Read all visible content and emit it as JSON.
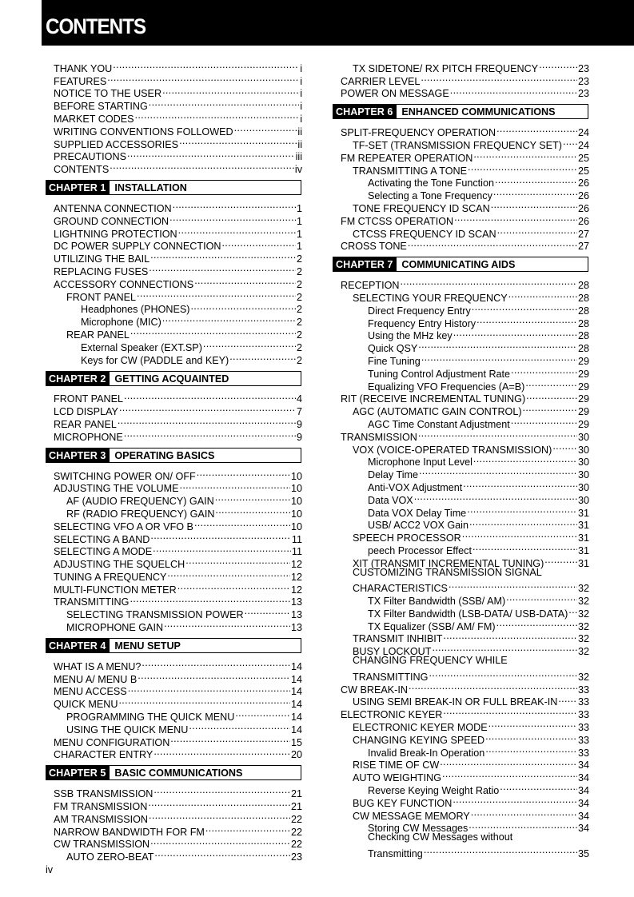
{
  "header": {
    "title": "CONTENTS"
  },
  "footer": {
    "page": "iv"
  },
  "columns": [
    [
      {
        "t": "THANK YOU",
        "p": "i",
        "l": 0
      },
      {
        "t": "FEATURES",
        "p": "i",
        "l": 0
      },
      {
        "t": "NOTICE TO THE USER",
        "p": "i",
        "l": 0
      },
      {
        "t": "BEFORE STARTING",
        "p": "i",
        "l": 0
      },
      {
        "t": "MARKET CODES",
        "p": "i",
        "l": 0
      },
      {
        "t": "WRITING CONVENTIONS FOLLOWED",
        "p": "ii",
        "l": 0
      },
      {
        "t": "SUPPLIED ACCESSORIES",
        "p": "ii",
        "l": 0
      },
      {
        "t": "PRECAUTIONS",
        "p": "iii",
        "l": 0
      },
      {
        "t": "CONTENTS",
        "p": "iv",
        "l": 0
      },
      {
        "chapter": "CHAPTER 1",
        "title": "INSTALLATION"
      },
      {
        "t": "ANTENNA CONNECTION",
        "p": "1",
        "l": 0
      },
      {
        "t": "GROUND CONNECTION",
        "p": "1",
        "l": 0
      },
      {
        "t": "LIGHTNING PROTECTION",
        "p": "1",
        "l": 0
      },
      {
        "t": "DC POWER SUPPLY CONNECTION",
        "p": "1",
        "l": 0
      },
      {
        "t": "UTILIZING THE BAIL",
        "p": "2",
        "l": 0
      },
      {
        "t": "REPLACING FUSES",
        "p": "2",
        "l": 0
      },
      {
        "t": "ACCESSORY CONNECTIONS",
        "p": "2",
        "l": 0
      },
      {
        "t": "FRONT PANEL",
        "p": "2",
        "l": 1
      },
      {
        "t": "Headphones (PHONES)",
        "p": "2",
        "l": 2
      },
      {
        "t": "Microphone (MIC)",
        "p": "2",
        "l": 2
      },
      {
        "t": "REAR PANEL",
        "p": "2",
        "l": 1
      },
      {
        "t": "External Speaker (EXT.SP)",
        "p": "2",
        "l": 2
      },
      {
        "t": "Keys for CW (PADDLE and KEY)",
        "p": "2",
        "l": 2
      },
      {
        "chapter": "CHAPTER 2",
        "title": "GETTING ACQUAINTED"
      },
      {
        "t": "FRONT PANEL",
        "p": "4",
        "l": 0
      },
      {
        "t": "LCD DISPLAY",
        "p": "7",
        "l": 0
      },
      {
        "t": "REAR PANEL",
        "p": "9",
        "l": 0
      },
      {
        "t": "MICROPHONE",
        "p": "9",
        "l": 0
      },
      {
        "chapter": "CHAPTER 3",
        "title": "OPERATING BASICS"
      },
      {
        "t": "SWITCHING POWER ON/ OFF",
        "p": "10",
        "l": 0
      },
      {
        "t": "ADJUSTING THE VOLUME",
        "p": "10",
        "l": 0
      },
      {
        "t": "AF (AUDIO FREQUENCY) GAIN",
        "p": "10",
        "l": 1
      },
      {
        "t": "RF (RADIO FREQUENCY) GAIN",
        "p": "10",
        "l": 1
      },
      {
        "t": "SELECTING VFO A OR VFO B",
        "p": "10",
        "l": 0
      },
      {
        "t": "SELECTING A BAND",
        "p": "11",
        "l": 0
      },
      {
        "t": "SELECTING A MODE",
        "p": "11",
        "l": 0
      },
      {
        "t": "ADJUSTING THE SQUELCH",
        "p": "12",
        "l": 0
      },
      {
        "t": "TUNING A FREQUENCY",
        "p": "12",
        "l": 0
      },
      {
        "t": "MULTI-FUNCTION METER",
        "p": "12",
        "l": 0
      },
      {
        "t": "TRANSMITTING",
        "p": "13",
        "l": 0
      },
      {
        "t": "SELECTING TRANSMISSION POWER",
        "p": "13",
        "l": 1
      },
      {
        "t": "MICROPHONE GAIN",
        "p": "13",
        "l": 1
      },
      {
        "chapter": "CHAPTER 4",
        "title": "MENU SETUP"
      },
      {
        "t": "WHAT IS A MENU?",
        "p": "14",
        "l": 0
      },
      {
        "t": "MENU A/ MENU B",
        "p": "14",
        "l": 0
      },
      {
        "t": "MENU ACCESS",
        "p": "14",
        "l": 0
      },
      {
        "t": "QUICK MENU",
        "p": "14",
        "l": 0
      },
      {
        "t": "PROGRAMMING THE QUICK MENU",
        "p": "14",
        "l": 1
      },
      {
        "t": "USING THE QUICK MENU",
        "p": "14",
        "l": 1
      },
      {
        "t": "MENU CONFIGURATION",
        "p": "15",
        "l": 0
      },
      {
        "t": "CHARACTER ENTRY",
        "p": "20",
        "l": 0
      },
      {
        "chapter": "CHAPTER 5",
        "title": "BASIC COMMUNICATIONS"
      },
      {
        "t": "SSB TRANSMISSION",
        "p": "21",
        "l": 0
      },
      {
        "t": "FM TRANSMISSION",
        "p": "21",
        "l": 0
      },
      {
        "t": "AM TRANSMISSION",
        "p": "22",
        "l": 0
      },
      {
        "t": "NARROW BANDWIDTH FOR FM",
        "p": "22",
        "l": 0
      },
      {
        "t": "CW TRANSMISSION",
        "p": "22",
        "l": 0
      },
      {
        "t": "AUTO ZERO-BEAT",
        "p": "23",
        "l": 1
      }
    ],
    [
      {
        "t": "TX SIDETONE/ RX PITCH FREQUENCY",
        "p": "23",
        "l": 1
      },
      {
        "t": "CARRIER LEVEL",
        "p": "23",
        "l": 0
      },
      {
        "t": "POWER ON MESSAGE",
        "p": "23",
        "l": 0
      },
      {
        "chapter": "CHAPTER 6",
        "title": "ENHANCED COMMUNICATIONS"
      },
      {
        "t": "SPLIT-FREQUENCY OPERATION",
        "p": "24",
        "l": 0
      },
      {
        "t": "TF-SET (TRANSMISSION FREQUENCY SET)",
        "p": "24",
        "l": 1
      },
      {
        "t": "FM REPEATER OPERATION",
        "p": "25",
        "l": 0
      },
      {
        "t": "TRANSMITTING A TONE",
        "p": "25",
        "l": 1
      },
      {
        "t": "Activating the Tone Function",
        "p": "26",
        "l": 2
      },
      {
        "t": "Selecting a Tone Frequency",
        "p": "26",
        "l": 2
      },
      {
        "t": "TONE FREQUENCY ID SCAN",
        "p": "26",
        "l": 1
      },
      {
        "t": "FM CTCSS OPERATION",
        "p": "26",
        "l": 0
      },
      {
        "t": "CTCSS FREQUENCY ID SCAN",
        "p": "27",
        "l": 1
      },
      {
        "t": "CROSS TONE",
        "p": "27",
        "l": 0
      },
      {
        "chapter": "CHAPTER 7",
        "title": "COMMUNICATING AIDS"
      },
      {
        "t": "RECEPTION",
        "p": "28",
        "l": 0
      },
      {
        "t": "SELECTING YOUR FREQUENCY",
        "p": "28",
        "l": 1
      },
      {
        "t": "Direct Frequency Entry",
        "p": "28",
        "l": 2
      },
      {
        "t": "Frequency Entry History",
        "p": "28",
        "l": 2
      },
      {
        "t": "Using the MHz key",
        "p": "28",
        "l": 2
      },
      {
        "t": "Quick QSY",
        "p": "28",
        "l": 2
      },
      {
        "t": "Fine Tuning",
        "p": "29",
        "l": 2
      },
      {
        "t": "Tuning Control Adjustment Rate",
        "p": "29",
        "l": 2
      },
      {
        "t": "Equalizing VFO Frequencies (A=B)",
        "p": "29",
        "l": 2
      },
      {
        "t": "RIT (RECEIVE INCREMENTAL TUNING)",
        "p": "29",
        "l": 0
      },
      {
        "t": "AGC (AUTOMATIC GAIN CONTROL)",
        "p": "29",
        "l": 1
      },
      {
        "t": "AGC Time Constant Adjustment",
        "p": "29",
        "l": 2
      },
      {
        "t": "TRANSMISSION",
        "p": "30",
        "l": 0
      },
      {
        "t": "VOX (VOICE-OPERATED TRANSMISSION)",
        "p": "30",
        "l": 1
      },
      {
        "t": "Microphone Input Level",
        "p": "30",
        "l": 2
      },
      {
        "t": "Delay Time",
        "p": "30",
        "l": 2
      },
      {
        "t": "Anti-VOX Adjustment",
        "p": "30",
        "l": 2
      },
      {
        "t": "Data VOX",
        "p": "30",
        "l": 2
      },
      {
        "t": "Data VOX Delay Time",
        "p": "31",
        "l": 2
      },
      {
        "t": "USB/ ACC2 VOX Gain",
        "p": "31",
        "l": 2
      },
      {
        "t": "SPEECH PROCESSOR",
        "p": "31",
        "l": 1
      },
      {
        "t": "peech Processor Effect",
        "p": "31",
        "l": 2
      },
      {
        "t": "XIT (TRANSMIT INCREMENTAL TUNING)",
        "p": "31",
        "l": 1
      },
      {
        "t": "CUSTOMIZING TRANSMISSION SIGNAL",
        "l": 1
      },
      {
        "t": "CHARACTERISTICS",
        "p": "32",
        "l": 1
      },
      {
        "t": "TX Filter Bandwidth (SSB/ AM)",
        "p": "32",
        "l": 2
      },
      {
        "t": "TX Filter Bandwidth (LSB-DATA/ USB-DATA)",
        "p": "32",
        "l": 2
      },
      {
        "t": "TX Equalizer (SSB/ AM/ FM)",
        "p": "32",
        "l": 2
      },
      {
        "t": "TRANSMIT INHIBIT",
        "p": "32",
        "l": 1
      },
      {
        "t": "BUSY LOCKOUT",
        "p": "32",
        "l": 1
      },
      {
        "t": "CHANGING FREQUENCY WHILE",
        "l": 1
      },
      {
        "t": "TRANSMITTING",
        "p": "32",
        "l": 1
      },
      {
        "t": "CW BREAK-IN",
        "p": "33",
        "l": 0
      },
      {
        "t": "USING SEMI BREAK-IN OR FULL BREAK-IN",
        "p": "33",
        "l": 1
      },
      {
        "t": "ELECTRONIC KEYER",
        "p": "33",
        "l": 0
      },
      {
        "t": "ELECTRONIC KEYER MODE",
        "p": "33",
        "l": 1
      },
      {
        "t": "CHANGING KEYING SPEED",
        "p": "33",
        "l": 1
      },
      {
        "t": "Invalid Break-In Operation",
        "p": "33",
        "l": 2
      },
      {
        "t": "RISE TIME OF CW",
        "p": "34",
        "l": 1
      },
      {
        "t": "AUTO WEIGHTING",
        "p": "34",
        "l": 1
      },
      {
        "t": "Reverse Keying Weight Ratio",
        "p": "34",
        "l": 2
      },
      {
        "t": "BUG KEY FUNCTION",
        "p": "34",
        "l": 1
      },
      {
        "t": "CW MESSAGE MEMORY",
        "p": "34",
        "l": 1
      },
      {
        "t": "Storing CW Messages",
        "p": "34",
        "l": 2
      },
      {
        "t": "Checking CW Messages without",
        "l": 2
      },
      {
        "t": "Transmitting",
        "p": "35",
        "l": 2
      }
    ]
  ]
}
